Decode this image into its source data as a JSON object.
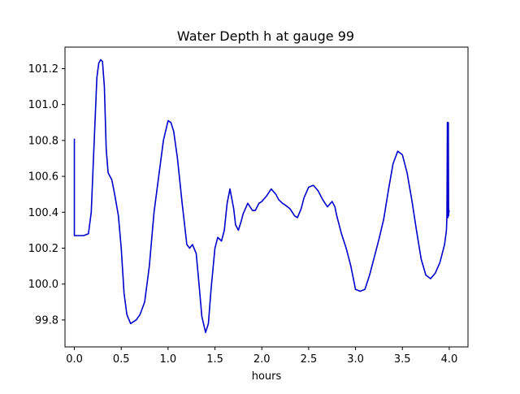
{
  "chart_data": {
    "type": "line",
    "title": "Water Depth h at gauge 99",
    "xlabel": "hours",
    "ylabel": "",
    "xlim": [
      -0.1,
      4.2
    ],
    "ylim": [
      99.65,
      101.32
    ],
    "xticks": [
      0.0,
      0.5,
      1.0,
      1.5,
      2.0,
      2.5,
      3.0,
      3.5,
      4.0
    ],
    "xtick_labels": [
      "0.0",
      "0.5",
      "1.0",
      "1.5",
      "2.0",
      "2.5",
      "3.0",
      "3.5",
      "4.0"
    ],
    "yticks": [
      99.8,
      100.0,
      100.2,
      100.4,
      100.6,
      100.8,
      101.0,
      101.2
    ],
    "ytick_labels": [
      "99.8",
      "100.0",
      "100.2",
      "100.4",
      "100.6",
      "100.8",
      "101.0",
      "101.2"
    ],
    "grid": false,
    "legend": "none",
    "series": [
      {
        "color": "#0000cc",
        "x": [
          0.0,
          0.0,
          0.0,
          0.05,
          0.1,
          0.15,
          0.18,
          0.2,
          0.22,
          0.24,
          0.26,
          0.28,
          0.3,
          0.32,
          0.34,
          0.36,
          0.4,
          0.43,
          0.47,
          0.5,
          0.53,
          0.56,
          0.6,
          0.63,
          0.66,
          0.7,
          0.75,
          0.8,
          0.85,
          0.9,
          0.95,
          1.0,
          1.03,
          1.06,
          1.1,
          1.15,
          1.2,
          1.23,
          1.26,
          1.3,
          1.33,
          1.36,
          1.4,
          1.43,
          1.46,
          1.5,
          1.53,
          1.57,
          1.6,
          1.63,
          1.66,
          1.7,
          1.72,
          1.75,
          1.78,
          1.8,
          1.85,
          1.9,
          1.93,
          1.97,
          2.0,
          2.05,
          2.1,
          2.15,
          2.18,
          2.22,
          2.25,
          2.3,
          2.35,
          2.38,
          2.42,
          2.45,
          2.5,
          2.55,
          2.6,
          2.65,
          2.7,
          2.75,
          2.78,
          2.8,
          2.85,
          2.9,
          2.95,
          3.0,
          3.05,
          3.1,
          3.15,
          3.2,
          3.25,
          3.3,
          3.35,
          3.4,
          3.45,
          3.5,
          3.55,
          3.6,
          3.65,
          3.7,
          3.75,
          3.8,
          3.85,
          3.9,
          3.95,
          3.97,
          3.975,
          3.98,
          3.985,
          3.99,
          3.993,
          3.996,
          4.0
        ],
        "y": [
          100.81,
          100.27,
          100.27,
          100.27,
          100.27,
          100.28,
          100.4,
          100.65,
          100.9,
          101.15,
          101.23,
          101.25,
          101.24,
          101.1,
          100.75,
          100.62,
          100.58,
          100.5,
          100.38,
          100.2,
          99.95,
          99.83,
          99.78,
          99.79,
          99.8,
          99.83,
          99.9,
          100.1,
          100.4,
          100.6,
          100.8,
          100.91,
          100.9,
          100.85,
          100.7,
          100.45,
          100.22,
          100.2,
          100.22,
          100.17,
          100.0,
          99.82,
          99.73,
          99.78,
          99.98,
          100.2,
          100.26,
          100.24,
          100.3,
          100.45,
          100.53,
          100.42,
          100.33,
          100.3,
          100.35,
          100.39,
          100.45,
          100.41,
          100.41,
          100.45,
          100.46,
          100.49,
          100.53,
          100.5,
          100.47,
          100.45,
          100.44,
          100.42,
          100.38,
          100.37,
          100.42,
          100.48,
          100.54,
          100.55,
          100.52,
          100.47,
          100.43,
          100.46,
          100.43,
          100.38,
          100.28,
          100.2,
          100.1,
          99.97,
          99.96,
          99.97,
          100.05,
          100.15,
          100.25,
          100.36,
          100.52,
          100.67,
          100.74,
          100.72,
          100.62,
          100.47,
          100.3,
          100.14,
          100.05,
          100.03,
          100.06,
          100.12,
          100.22,
          100.3,
          100.38,
          100.9,
          100.37,
          100.9,
          100.38,
          100.41,
          100.4
        ]
      }
    ]
  }
}
